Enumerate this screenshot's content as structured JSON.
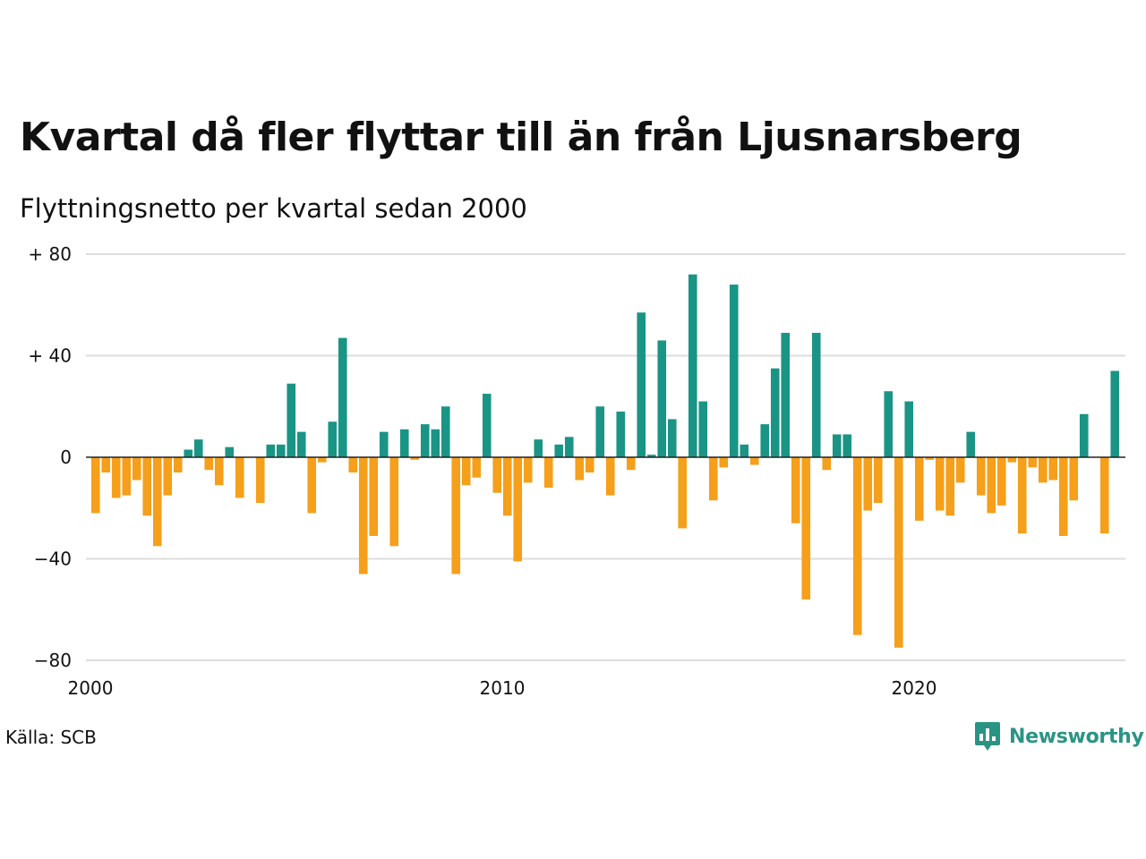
{
  "title": "Kvartal då fler flyttar till än från Ljusnarsberg",
  "subtitle": "Flyttningsnetto per kvartal sedan 2000",
  "source": "Källa: SCB",
  "brand": {
    "name": "Newsworthy",
    "icon": "newsworthy-chart-bubble-icon",
    "color": "#2a9484"
  },
  "colors": {
    "positive": "#1a9485",
    "negative": "#f59f1a",
    "grid": "#dddddd",
    "zero_line": "#222222"
  },
  "chart_data": {
    "type": "bar",
    "title": "Kvartal då fler flyttar till än från Ljusnarsberg",
    "subtitle": "Flyttningsnetto per kvartal sedan 2000",
    "xlabel": "",
    "ylabel": "",
    "ylim": [
      -80,
      80
    ],
    "yticks": [
      80,
      40,
      0,
      -40,
      -80
    ],
    "ytick_labels": [
      "+ 80",
      "+ 40",
      "0",
      "−40",
      "−80"
    ],
    "xticks": [
      2000,
      2010,
      2020
    ],
    "xtick_labels": [
      "2000",
      "2010",
      "2020"
    ],
    "grid": true,
    "legend": "none",
    "series": [
      {
        "start_quarter": "2000Q1",
        "values": [
          -22,
          -6,
          -16,
          -15,
          -9,
          -23,
          -35,
          -15,
          -6,
          3,
          7,
          -5,
          -11,
          4,
          -16,
          0,
          -18,
          5,
          5,
          29,
          10,
          -22,
          -2,
          14,
          47,
          -6,
          -46,
          -31,
          10,
          -35,
          11,
          -1,
          13,
          11,
          20,
          -46,
          -11,
          -8,
          25,
          -14,
          -23,
          -41,
          -10,
          7,
          -12,
          5,
          8,
          -9,
          -6,
          20,
          -15,
          18,
          -5,
          57,
          1,
          46,
          15,
          -28,
          72,
          22,
          -17,
          -4,
          68,
          5,
          -3,
          13,
          35,
          49,
          -26,
          -56,
          49,
          -5,
          9,
          9,
          -70,
          -21,
          -18,
          26,
          -75,
          22,
          -25,
          -1,
          -21,
          -23,
          -10,
          10,
          -15,
          -22,
          -19,
          -2,
          -30,
          -4,
          -10,
          -9,
          -31,
          -17,
          17,
          0,
          -30,
          34
        ]
      }
    ]
  }
}
